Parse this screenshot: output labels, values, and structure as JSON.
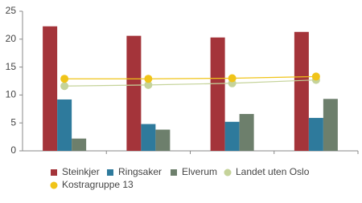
{
  "chart_data": {
    "type": "bar",
    "categories": [
      null,
      null,
      null,
      null
    ],
    "series": [
      {
        "name": "Steinkjer",
        "color": "#a4343a",
        "values": [
          22.3,
          20.6,
          20.3,
          21.3
        ]
      },
      {
        "name": "Ringsaker",
        "color": "#2e7a9c",
        "values": [
          9.2,
          4.8,
          5.2,
          5.9
        ]
      },
      {
        "name": "Elverum",
        "color": "#6d7f6c",
        "values": [
          2.2,
          3.8,
          6.6,
          9.3
        ]
      },
      {
        "name": "Landet uten Oslo",
        "color": "#c5d39a",
        "type": "line",
        "values": [
          11.6,
          11.8,
          12.1,
          12.7
        ]
      },
      {
        "name": "Kostragruppe 13",
        "color": "#f0c419",
        "type": "line",
        "values": [
          12.9,
          12.9,
          13.0,
          13.3
        ]
      }
    ],
    "ylim": [
      0,
      25
    ],
    "yticks": [
      0,
      5,
      10,
      15,
      20,
      25
    ],
    "grid": false
  }
}
